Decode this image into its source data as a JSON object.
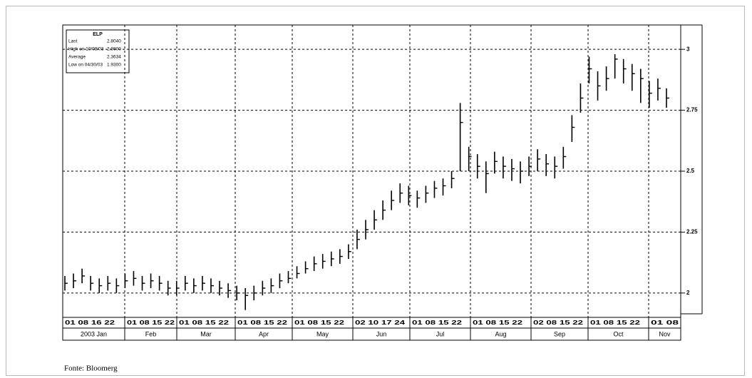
{
  "chart_data": {
    "type": "ohlc",
    "legend": {
      "title": "ELP",
      "rows": [
        [
          "Last",
          "2.8040"
        ],
        [
          "High on 10/08/03",
          "2.9800"
        ],
        [
          "Average",
          "2.3634"
        ],
        [
          "Low on 04/30/03",
          "1.9300"
        ]
      ]
    },
    "months": [
      "2003 Jan",
      "Feb",
      "Mar",
      "Apr",
      "May",
      "Jun",
      "Jul",
      "Aug",
      "Sep",
      "Oct",
      "Nov"
    ],
    "day_labels": [
      "01 08 16 22",
      "01 08 15 22",
      "01 08 15 22",
      "01 08 15 22",
      "01 08 15 22",
      "02 10 17 24",
      "01 08 15 22",
      "01 08 15 22",
      "02 08 15 22",
      "01 08 15 22",
      "01 08"
    ],
    "series": [
      {
        "name": "High",
        "values": [
          2.07,
          2.08,
          2.1,
          2.07,
          2.06,
          2.07,
          2.06,
          2.08,
          2.09,
          2.07,
          2.08,
          2.07,
          2.05,
          2.05,
          2.07,
          2.06,
          2.07,
          2.06,
          2.05,
          2.04,
          2.03,
          2.02,
          2.03,
          2.05,
          2.06,
          2.08,
          2.09,
          2.11,
          2.13,
          2.15,
          2.16,
          2.17,
          2.18,
          2.2,
          2.26,
          2.3,
          2.34,
          2.38,
          2.42,
          2.45,
          2.44,
          2.42,
          2.44,
          2.46,
          2.47,
          2.5,
          2.78,
          2.6,
          2.57,
          2.54,
          2.58,
          2.56,
          2.55,
          2.54,
          2.56,
          2.59,
          2.57,
          2.56,
          2.6,
          2.73,
          2.86,
          2.97,
          2.91,
          2.93,
          2.98,
          2.96,
          2.94,
          2.92,
          2.87,
          2.88,
          2.84
        ]
      },
      {
        "name": "Low",
        "values": [
          2.01,
          2.02,
          2.04,
          2.01,
          2.0,
          2.01,
          2.0,
          2.02,
          2.03,
          2.01,
          2.02,
          2.01,
          1.99,
          1.99,
          2.01,
          2.0,
          2.01,
          2.0,
          1.99,
          1.98,
          1.97,
          1.93,
          1.97,
          1.99,
          2.0,
          2.02,
          2.04,
          2.06,
          2.08,
          2.09,
          2.1,
          2.11,
          2.12,
          2.14,
          2.18,
          2.22,
          2.26,
          2.3,
          2.34,
          2.37,
          2.36,
          2.35,
          2.37,
          2.39,
          2.4,
          2.43,
          2.5,
          2.5,
          2.47,
          2.41,
          2.49,
          2.47,
          2.46,
          2.45,
          2.48,
          2.5,
          2.48,
          2.47,
          2.51,
          2.62,
          2.74,
          2.86,
          2.79,
          2.83,
          2.88,
          2.86,
          2.83,
          2.78,
          2.76,
          2.79,
          2.76
        ]
      },
      {
        "name": "Close",
        "values": [
          2.04,
          2.05,
          2.07,
          2.04,
          2.03,
          2.04,
          2.03,
          2.05,
          2.06,
          2.04,
          2.05,
          2.04,
          2.02,
          2.02,
          2.04,
          2.03,
          2.04,
          2.03,
          2.02,
          2.01,
          2.0,
          1.99,
          2.0,
          2.02,
          2.03,
          2.05,
          2.06,
          2.08,
          2.1,
          2.12,
          2.13,
          2.14,
          2.15,
          2.17,
          2.22,
          2.26,
          2.3,
          2.34,
          2.38,
          2.41,
          2.4,
          2.39,
          2.41,
          2.43,
          2.44,
          2.47,
          2.7,
          2.56,
          2.52,
          2.49,
          2.54,
          2.52,
          2.51,
          2.5,
          2.52,
          2.55,
          2.53,
          2.52,
          2.56,
          2.68,
          2.8,
          2.92,
          2.85,
          2.88,
          2.96,
          2.92,
          2.9,
          2.88,
          2.82,
          2.84,
          2.8
        ]
      }
    ],
    "ylim": [
      1.9,
      3.1
    ],
    "yticks": [
      2,
      2.25,
      2.5,
      2.75,
      3
    ],
    "grid": true,
    "source": "Fonte: Bloomerg"
  }
}
